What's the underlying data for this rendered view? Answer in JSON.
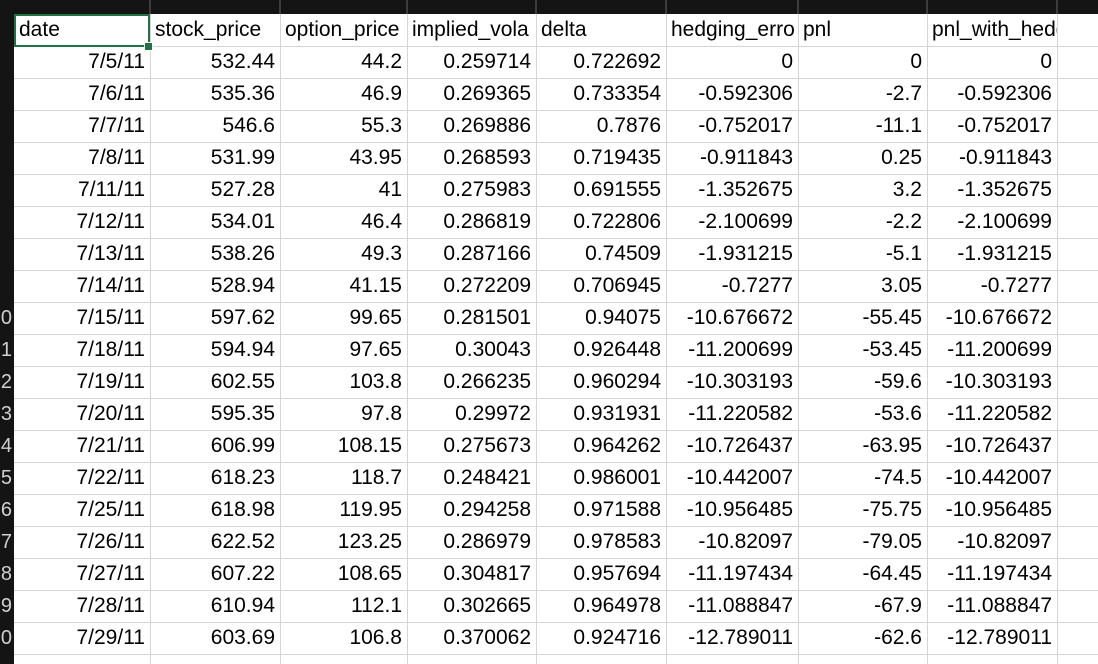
{
  "sheet": {
    "selected_cell_value": "date",
    "columns": [
      "date",
      "stock_price",
      "option_price",
      "implied_vola",
      "delta",
      "hedging_erro",
      "pnl",
      "pnl_with_hedge"
    ],
    "row_gutter_labels": [
      "0",
      "1",
      "2",
      "3",
      "4",
      "5",
      "6",
      "7",
      "8",
      "9",
      "0"
    ],
    "rows": [
      [
        "7/5/11",
        "532.44",
        "44.2",
        "0.259714",
        "0.722692",
        "0",
        "0",
        "0"
      ],
      [
        "7/6/11",
        "535.36",
        "46.9",
        "0.269365",
        "0.733354",
        "-0.592306",
        "-2.7",
        "-0.592306"
      ],
      [
        "7/7/11",
        "546.6",
        "55.3",
        "0.269886",
        "0.7876",
        "-0.752017",
        "-11.1",
        "-0.752017"
      ],
      [
        "7/8/11",
        "531.99",
        "43.95",
        "0.268593",
        "0.719435",
        "-0.911843",
        "0.25",
        "-0.911843"
      ],
      [
        "7/11/11",
        "527.28",
        "41",
        "0.275983",
        "0.691555",
        "-1.352675",
        "3.2",
        "-1.352675"
      ],
      [
        "7/12/11",
        "534.01",
        "46.4",
        "0.286819",
        "0.722806",
        "-2.100699",
        "-2.2",
        "-2.100699"
      ],
      [
        "7/13/11",
        "538.26",
        "49.3",
        "0.287166",
        "0.74509",
        "-1.931215",
        "-5.1",
        "-1.931215"
      ],
      [
        "7/14/11",
        "528.94",
        "41.15",
        "0.272209",
        "0.706945",
        "-0.7277",
        "3.05",
        "-0.7277"
      ],
      [
        "7/15/11",
        "597.62",
        "99.65",
        "0.281501",
        "0.94075",
        "-10.676672",
        "-55.45",
        "-10.676672"
      ],
      [
        "7/18/11",
        "594.94",
        "97.65",
        "0.30043",
        "0.926448",
        "-11.200699",
        "-53.45",
        "-11.200699"
      ],
      [
        "7/19/11",
        "602.55",
        "103.8",
        "0.266235",
        "0.960294",
        "-10.303193",
        "-59.6",
        "-10.303193"
      ],
      [
        "7/20/11",
        "595.35",
        "97.8",
        "0.29972",
        "0.931931",
        "-11.220582",
        "-53.6",
        "-11.220582"
      ],
      [
        "7/21/11",
        "606.99",
        "108.15",
        "0.275673",
        "0.964262",
        "-10.726437",
        "-63.95",
        "-10.726437"
      ],
      [
        "7/22/11",
        "618.23",
        "118.7",
        "0.248421",
        "0.986001",
        "-10.442007",
        "-74.5",
        "-10.442007"
      ],
      [
        "7/25/11",
        "618.98",
        "119.95",
        "0.294258",
        "0.971588",
        "-10.956485",
        "-75.75",
        "-10.956485"
      ],
      [
        "7/26/11",
        "622.52",
        "123.25",
        "0.286979",
        "0.978583",
        "-10.82097",
        "-79.05",
        "-10.82097"
      ],
      [
        "7/27/11",
        "607.22",
        "108.65",
        "0.304817",
        "0.957694",
        "-11.197434",
        "-64.45",
        "-11.197434"
      ],
      [
        "7/28/11",
        "610.94",
        "112.1",
        "0.302665",
        "0.964978",
        "-11.088847",
        "-67.9",
        "-11.088847"
      ],
      [
        "7/29/11",
        "603.69",
        "106.8",
        "0.370062",
        "0.924716",
        "-12.789011",
        "-62.6",
        "-12.789011"
      ]
    ]
  },
  "colors": {
    "selection": "#217346",
    "gridline": "#d4d4d4",
    "chrome": "#141414"
  }
}
